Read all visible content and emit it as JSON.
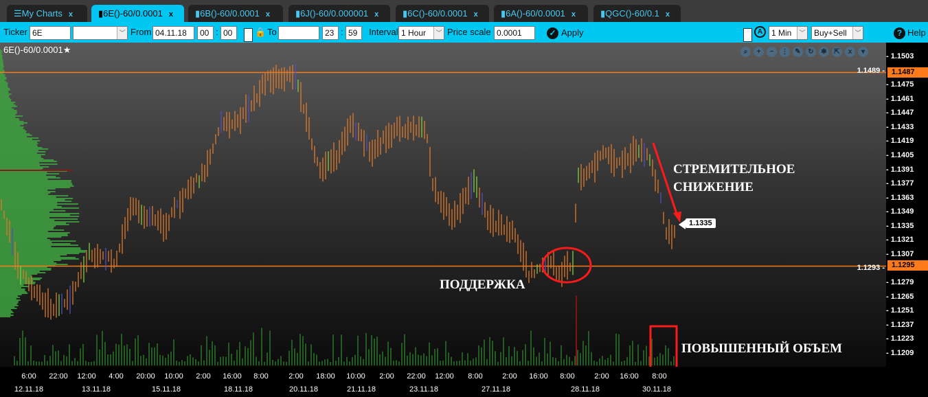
{
  "tabs": [
    {
      "label": "My Charts",
      "icon": "menu-icon"
    },
    {
      "label": "6E()-60/0.0001",
      "icon": "bar-chart-icon",
      "active": true
    },
    {
      "label": "6B()-60/0.0001",
      "icon": "bar-chart-icon"
    },
    {
      "label": "6J()-60/0.000001",
      "icon": "bar-chart-icon"
    },
    {
      "label": "6C()-60/0.0001",
      "icon": "bar-chart-icon"
    },
    {
      "label": "6A()-60/0.0001",
      "icon": "bar-chart-icon"
    },
    {
      "label": "QGC()-60/0.1",
      "icon": "bar-chart-icon"
    }
  ],
  "tab_close": "x",
  "toolbar": {
    "ticker_label": "Ticker",
    "ticker_value": "6E",
    "from_label": "From",
    "from_date": "04.11.18",
    "from_hour": "00",
    "from_min": "00",
    "to_label": "To",
    "to_date": "",
    "to_hour": "23",
    "to_min": "59",
    "colon": ":",
    "interval_label": "Interval",
    "interval_value": "1 Hour",
    "price_scale_label": "Price scale",
    "price_scale_value": "0.0001",
    "apply_label": "Apply",
    "period_value": "1 Min",
    "side_value": "Buy+Sell",
    "help_label": "Help"
  },
  "chart": {
    "title": "6E()-60/0.0001",
    "star": "★",
    "current_price": "1.1335",
    "resistance": "1.1487",
    "support": "1.1295",
    "annotations": {
      "drop": "СТРЕМИТЕЛЬНОЕ\nСНИЖЕНИЕ",
      "support": "ПОДДЕРЖКА",
      "volume": "ПОВЫШЕННЫЙ ОБЪЕМ"
    },
    "colors": {
      "bars": "#e07a2a",
      "levels": "#ff7a1a",
      "volume": "#2e7d2e",
      "profile": "#3fa33f",
      "annotation": "#ff1a1a"
    }
  },
  "chart_data": {
    "type": "bar",
    "ylim": [
      1.1203,
      1.151
    ],
    "yticks": [
      "1.1503",
      "1.1489",
      "1.1475",
      "1.1461",
      "1.1447",
      "1.1433",
      "1.1419",
      "1.1405",
      "1.1391",
      "1.1377",
      "1.1363",
      "1.1349",
      "1.1335",
      "1.1321",
      "1.1307",
      "1.1293",
      "1.1279",
      "1.1265",
      "1.1251",
      "1.1237",
      "1.1223",
      "1.1209"
    ],
    "xticks_time": [
      "6:00",
      "22:00",
      "12:00",
      "4:00",
      "20:00",
      "10:00",
      "2:00",
      "16:00",
      "8:00",
      "2:00",
      "18:00",
      "10:00",
      "2:00",
      "22:00",
      "12:00",
      "8:00",
      "2:00",
      "16:00",
      "8:00",
      "2:00",
      "16:00",
      "8:00"
    ],
    "xticks_date": [
      "12.11.18",
      "13.11.18",
      "15.11.18",
      "18.11.18",
      "20.11.18",
      "21.11.18",
      "23.11.18",
      "27.11.18",
      "28.11.18",
      "30.11.18"
    ],
    "price_path": [
      1.1361,
      1.1287,
      1.1253,
      1.1266,
      1.1307,
      1.13,
      1.1355,
      1.1334,
      1.1368,
      1.1389,
      1.1436,
      1.144,
      1.1481,
      1.1484,
      1.1457,
      1.1389,
      1.1402,
      1.1436,
      1.1409,
      1.143,
      1.1433,
      1.1375,
      1.1341,
      1.1382,
      1.1341,
      1.1327,
      1.1287,
      1.13,
      1.1287,
      1.13,
      1.1382,
      1.1389,
      1.1412,
      1.1395,
      1.1412,
      1.1402,
      1.1368,
      1.1327,
      1.1327
    ]
  }
}
